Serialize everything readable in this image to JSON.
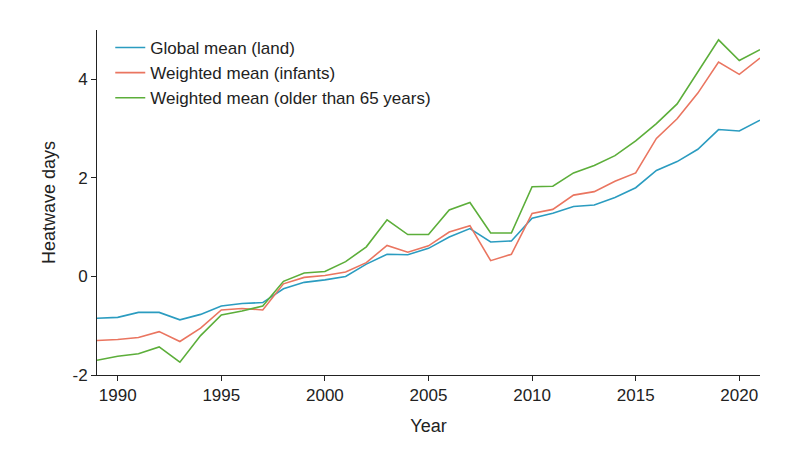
{
  "chart_data": {
    "type": "line",
    "x_label": "Year",
    "y_label": "Heatwave days",
    "x": [
      1989,
      1990,
      1991,
      1992,
      1993,
      1994,
      1995,
      1996,
      1997,
      1998,
      1999,
      2000,
      2001,
      2002,
      2003,
      2004,
      2005,
      2006,
      2007,
      2008,
      2009,
      2010,
      2011,
      2012,
      2013,
      2014,
      2015,
      2016,
      2017,
      2018,
      2019,
      2020,
      2021
    ],
    "series": [
      {
        "name": "Global mean (land)",
        "color": "#2b9cc0",
        "values": [
          -0.85,
          -0.83,
          -0.73,
          -0.73,
          -0.88,
          -0.77,
          -0.6,
          -0.55,
          -0.53,
          -0.25,
          -0.12,
          -0.07,
          0.0,
          0.25,
          0.45,
          0.44,
          0.57,
          0.8,
          0.97,
          0.7,
          0.72,
          1.18,
          1.28,
          1.42,
          1.45,
          1.6,
          1.8,
          2.15,
          2.33,
          2.58,
          2.98,
          2.95,
          3.17
        ]
      },
      {
        "name": "Weighted mean (infants)",
        "color": "#ea7560",
        "values": [
          -1.3,
          -1.28,
          -1.24,
          -1.12,
          -1.32,
          -1.05,
          -0.68,
          -0.65,
          -0.68,
          -0.15,
          -0.02,
          0.02,
          0.09,
          0.28,
          0.63,
          0.49,
          0.62,
          0.9,
          1.03,
          0.32,
          0.45,
          1.28,
          1.36,
          1.65,
          1.72,
          1.93,
          2.1,
          2.8,
          3.2,
          3.72,
          4.35,
          4.1,
          4.43
        ]
      },
      {
        "name": "Weighted mean (older than 65 years)",
        "color": "#5cae3a",
        "values": [
          -1.7,
          -1.62,
          -1.57,
          -1.43,
          -1.74,
          -1.2,
          -0.78,
          -0.7,
          -0.6,
          -0.1,
          0.07,
          0.1,
          0.3,
          0.6,
          1.15,
          0.85,
          0.85,
          1.35,
          1.5,
          0.88,
          0.88,
          1.82,
          1.83,
          2.1,
          2.25,
          2.45,
          2.75,
          3.1,
          3.5,
          4.15,
          4.8,
          4.38,
          4.6
        ]
      }
    ],
    "xlim": [
      1989,
      2021
    ],
    "xticks": [
      1990,
      1995,
      2000,
      2005,
      2010,
      2015,
      2020
    ],
    "ylim": [
      -2,
      5
    ],
    "yticks": [
      -2,
      0,
      2,
      4
    ],
    "grid": false,
    "legend": "top-left"
  }
}
